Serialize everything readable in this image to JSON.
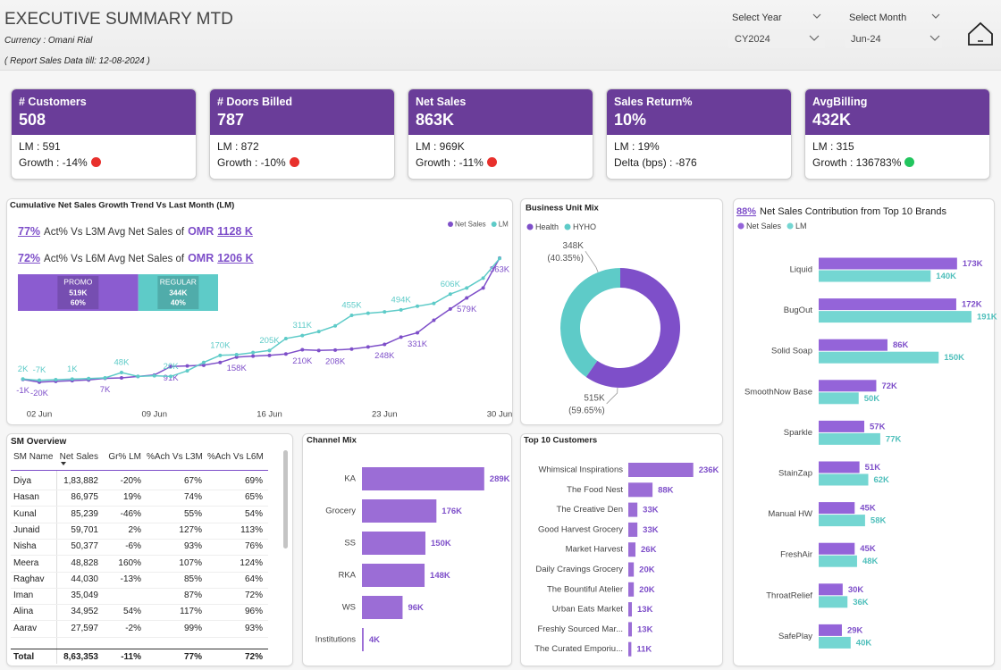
{
  "header": {
    "title": "EXECUTIVE SUMMARY MTD",
    "currency": "Currency : Omani Rial",
    "report_date": "( Report Sales Data till: 12-08-2024 )",
    "filters": [
      {
        "label": "Select Year",
        "value": "CY2024"
      },
      {
        "label": "Select Month",
        "value": "Jun-24"
      }
    ]
  },
  "kpi_cards": [
    {
      "title": "# Customers",
      "value": "508",
      "line1": "LM : 591",
      "line2": "Growth : -14%",
      "indicator": "#e8302c"
    },
    {
      "title": "# Doors Billed",
      "value": "787",
      "line1": "LM : 872",
      "line2": "Growth : -10%",
      "indicator": "#e8302c"
    },
    {
      "title": "Net Sales",
      "value": "863K",
      "line1": "LM : 969K",
      "line2": "Growth : -11%",
      "indicator": "#e8302c"
    },
    {
      "title": "Sales Return%",
      "value": "10%",
      "line1": "LM : 19%",
      "line2": "Delta (bps) : -876"
    },
    {
      "title": "AvgBilling",
      "value": "432K",
      "line1": "LM : 315",
      "line2": "Growth : 136783%",
      "indicator": "#22c55e"
    }
  ],
  "sm_overview": {
    "title": "SM Overview",
    "columns": [
      "SM Name",
      "Net Sales",
      "Gr% LM",
      "%Ach Vs L3M",
      "%Ach Vs L6M"
    ],
    "rows": [
      [
        "Diya",
        "1,83,882",
        "-20%",
        "67%",
        "69%"
      ],
      [
        "Hasan",
        "86,975",
        "19%",
        "74%",
        "65%"
      ],
      [
        "Kunal",
        "85,239",
        "-46%",
        "55%",
        "54%"
      ],
      [
        "Junaid",
        "59,701",
        "2%",
        "127%",
        "113%"
      ],
      [
        "Nisha",
        "50,377",
        "-6%",
        "93%",
        "76%"
      ],
      [
        "Meera",
        "48,828",
        "160%",
        "107%",
        "124%"
      ],
      [
        "Raghav",
        "44,030",
        "-13%",
        "85%",
        "64%"
      ],
      [
        "Iman",
        "35,049",
        null,
        "87%",
        "72%"
      ],
      [
        "Alina",
        "34,952",
        "54%",
        "117%",
        "96%"
      ],
      [
        "Aarav",
        "27,597",
        "-2%",
        "99%",
        "93%"
      ]
    ],
    "total": [
      "Total",
      "8,63,353",
      "-11%",
      "77%",
      "72%"
    ]
  },
  "chart_data": [
    {
      "type": "line",
      "title": "Cumulative Net Sales Growth Trend Vs Last Month (LM)",
      "annotations": [
        {
          "pct": "77%",
          "text": "Act% Vs L3M Avg Net Sales of",
          "currency": "OMR",
          "amount": "1128 K"
        },
        {
          "pct": "72%",
          "text": "Act% Vs L6M Avg Net Sales of",
          "currency": "OMR",
          "amount": "1206 K"
        }
      ],
      "mix_bar": [
        {
          "name": "PROMO",
          "value": 519,
          "value_label": "519K",
          "share": 60,
          "share_label": "60%",
          "color": "#8b5cd0"
        },
        {
          "name": "REGULAR",
          "value": 344,
          "value_label": "344K",
          "share": 40,
          "share_label": "40%",
          "color": "#5ecbc8"
        }
      ],
      "categories": [
        null,
        "02 Jun",
        null,
        null,
        null,
        null,
        null,
        null,
        "09 Jun",
        null,
        null,
        null,
        null,
        null,
        null,
        "16 Jun",
        null,
        null,
        null,
        null,
        null,
        null,
        "23 Jun",
        null,
        null,
        null,
        null,
        null,
        null,
        "30 Jun"
      ],
      "ylim": [
        -60,
        900
      ],
      "legend": "top-right",
      "series": [
        {
          "name": "Net Sales",
          "color": "#7e4fc9",
          "values": [
            -1,
            -20,
            -15,
            -10,
            -5,
            7,
            10,
            20,
            30,
            91,
            95,
            100,
            120,
            158,
            165,
            170,
            180,
            210,
            205,
            208,
            215,
            230,
            248,
            300,
            331,
            420,
            500,
            579,
            650,
            863
          ],
          "value_labels": [
            "-1K",
            "-20K",
            null,
            null,
            null,
            "7K",
            null,
            null,
            null,
            "91K",
            null,
            null,
            null,
            "158K",
            null,
            null,
            null,
            "210K",
            null,
            "208K",
            null,
            null,
            "248K",
            null,
            "331K",
            null,
            null,
            "579K",
            null,
            "863K"
          ]
        },
        {
          "name": "LM",
          "color": "#5ecbc8",
          "values": [
            2,
            -7,
            -3,
            1,
            5,
            10,
            48,
            20,
            25,
            20,
            60,
            120,
            170,
            175,
            190,
            205,
            290,
            311,
            340,
            380,
            455,
            470,
            480,
            494,
            520,
            540,
            606,
            650,
            720,
            860
          ],
          "value_labels": [
            "2K",
            "-7K",
            null,
            "1K",
            null,
            null,
            "48K",
            null,
            null,
            "20K",
            null,
            null,
            "170K",
            null,
            null,
            "205K",
            null,
            "311K",
            null,
            null,
            "455K",
            null,
            null,
            "494K",
            null,
            null,
            "606K",
            null,
            null,
            null
          ]
        }
      ]
    },
    {
      "type": "donut",
      "title": "Business Unit Mix",
      "categories": [
        "Health",
        "HYHO"
      ],
      "values": [
        515,
        348
      ],
      "value_labels": [
        "515K",
        "348K"
      ],
      "shares": [
        59.65,
        40.35
      ],
      "share_labels": [
        "(59.65%)",
        "(40.35%)"
      ],
      "colors": [
        "#7e4fc9",
        "#5ecbc8"
      ]
    },
    {
      "type": "hbar",
      "title_pct": "88%",
      "title": "Net Sales Contribution from Top 10 Brands",
      "categories": [
        "Liquid",
        "BugOut",
        "Solid Soap",
        "SmoothNow Base",
        "Sparkle",
        "StainZap",
        "Manual HW",
        "FreshAir",
        "ThroatRelief",
        "SafePlay"
      ],
      "xlim": [
        0,
        200
      ],
      "series": [
        {
          "name": "Net Sales",
          "color": "#9464d9",
          "values": [
            173,
            172,
            86,
            72,
            57,
            51,
            45,
            45,
            30,
            29
          ],
          "value_labels": [
            "173K",
            "172K",
            "86K",
            "72K",
            "57K",
            "51K",
            "45K",
            "45K",
            "30K",
            "29K"
          ]
        },
        {
          "name": "LM",
          "color": "#74d6d2",
          "values": [
            140,
            191,
            150,
            50,
            77,
            62,
            58,
            48,
            36,
            40
          ],
          "value_labels": [
            "140K",
            "191K",
            "150K",
            "50K",
            "77K",
            "62K",
            "58K",
            "48K",
            "36K",
            "40K"
          ]
        }
      ]
    },
    {
      "type": "hbar",
      "title": "Channel Mix",
      "categories": [
        "KA",
        "Grocery",
        "SS",
        "RKA",
        "WS",
        "Institutions"
      ],
      "xlim": [
        0,
        300
      ],
      "series": [
        {
          "color": "#9b6dd6",
          "values": [
            289,
            176,
            150,
            148,
            96,
            4
          ],
          "value_labels": [
            "289K",
            "176K",
            "150K",
            "148K",
            "96K",
            "4K"
          ]
        }
      ]
    },
    {
      "type": "hbar",
      "title": "Top 10 Customers",
      "categories": [
        "Whimsical Inspirations",
        "The Food Nest",
        "The Creative Den",
        "Good Harvest Grocery",
        "Market Harvest",
        "Daily Cravings Grocery",
        "The Bountiful Atelier",
        "Urban Eats Market",
        "Freshly Sourced Mar...",
        "The Curated Emporiu..."
      ],
      "xlim": [
        0,
        250
      ],
      "series": [
        {
          "color": "#9b6dd6",
          "values": [
            236,
            88,
            33,
            33,
            26,
            20,
            20,
            13,
            13,
            11
          ],
          "value_labels": [
            "236K",
            "88K",
            "33K",
            "33K",
            "26K",
            "20K",
            "20K",
            "13K",
            "13K",
            "11K"
          ]
        }
      ]
    }
  ]
}
